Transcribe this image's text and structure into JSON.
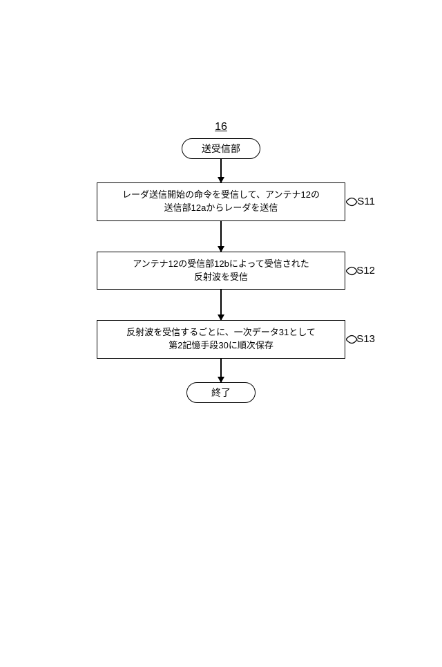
{
  "flowchart": {
    "type": "flowchart",
    "background_color": "#ffffff",
    "stroke_color": "#000000",
    "stroke_width": 1.5,
    "font_size_node": 13,
    "font_size_label": 15,
    "font_size_top_label": 16,
    "node_width_process": 360,
    "terminal_border_radius": 999,
    "arrow_head_size": 9,
    "top_ref_label": "16",
    "nodes": {
      "start": {
        "shape": "terminal",
        "text": "送受信部"
      },
      "s11": {
        "shape": "process",
        "text": "レーダ送信開始の命令を受信して、アンテナ12の\n送信部12aからレーダを送信",
        "side_label": "S11"
      },
      "s12": {
        "shape": "process",
        "text": "アンテナ12の受信部12bによって受信された\n反射波を受信",
        "side_label": "S12"
      },
      "s13": {
        "shape": "process",
        "text": "反射波を受信するごとに、一次データ31として\n第2記憶手段30に順次保存",
        "side_label": "S13"
      },
      "end": {
        "shape": "terminal",
        "text": "終了"
      }
    },
    "edges": [
      {
        "from": "start",
        "to": "s11",
        "length": 34
      },
      {
        "from": "s11",
        "to": "s12",
        "length": 44
      },
      {
        "from": "s12",
        "to": "s13",
        "length": 44
      },
      {
        "from": "s13",
        "to": "end",
        "length": 34
      }
    ]
  }
}
